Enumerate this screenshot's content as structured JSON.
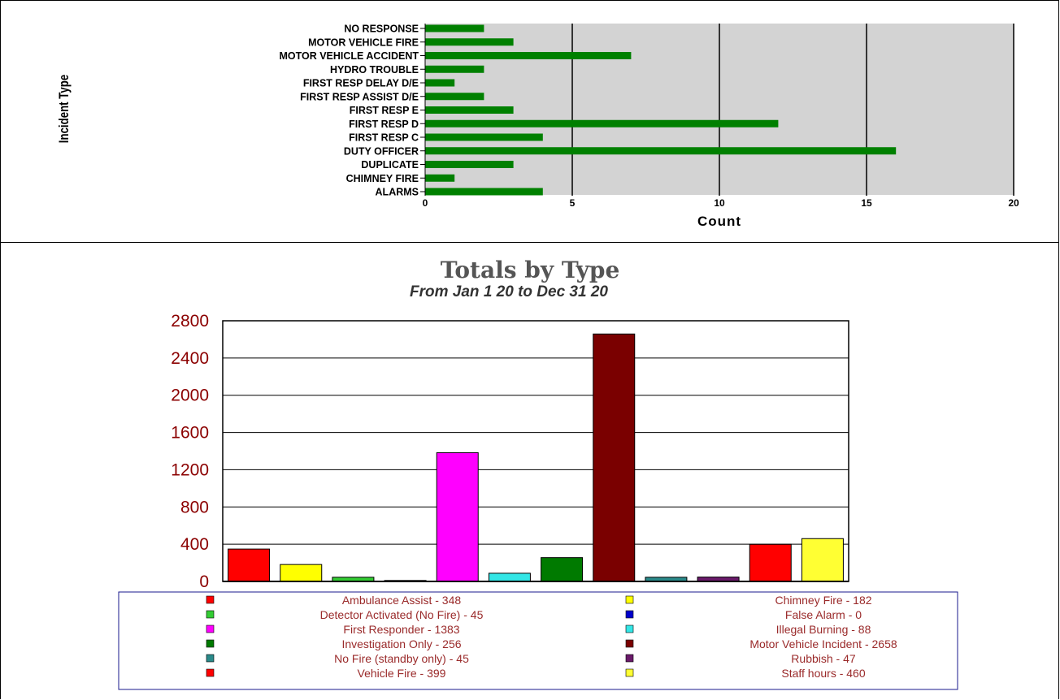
{
  "chart_data": [
    {
      "type": "bar",
      "orientation": "horizontal",
      "ylabel": "Incident Type",
      "xlabel": "Count",
      "xlim": [
        0,
        20
      ],
      "xticks": [
        "0",
        "5",
        "10",
        "15",
        "20"
      ],
      "grid": true,
      "background": "#d3d3d3",
      "bar_color": "#008000",
      "categories": [
        "NO RESPONSE",
        "MOTOR VEHICLE FIRE",
        "MOTOR VEHICLE ACCIDENT",
        "HYDRO TROUBLE",
        "FIRST RESP DELAY D/E",
        "FIRST RESP ASSIST D/E",
        "FIRST RESP  E",
        "FIRST RESP  D",
        "FIRST RESP  C",
        "DUTY OFFICER",
        "DUPLICATE",
        "CHIMNEY FIRE",
        "ALARMS"
      ],
      "values": [
        2,
        3,
        7,
        2,
        1,
        2,
        3,
        12,
        4,
        16,
        3,
        1,
        4
      ]
    },
    {
      "type": "bar",
      "title": "Totals by Type",
      "subtitle": "From Jan 1 20 to Dec 31 20",
      "ylim": [
        0,
        2800
      ],
      "yticks": [
        "0",
        "400",
        "800",
        "1200",
        "1600",
        "2000",
        "2400",
        "2800"
      ],
      "grid": true,
      "legend_position": "bottom",
      "series": [
        {
          "name": "Ambulance Assist - 348",
          "value": 348,
          "color": "#ff0000"
        },
        {
          "name": "Chimney Fire - 182",
          "value": 182,
          "color": "#ffff00"
        },
        {
          "name": "Detector Activated (No Fire) - 45",
          "value": 45,
          "color": "#33cc33"
        },
        {
          "name": "False Alarm - 0",
          "value": 0,
          "color": "#0000cc"
        },
        {
          "name": "First Responder - 1383",
          "value": 1383,
          "color": "#ff00ff"
        },
        {
          "name": "Illegal Burning - 88",
          "value": 88,
          "color": "#33e6e6"
        },
        {
          "name": "Investigation Only - 256",
          "value": 256,
          "color": "#007a00"
        },
        {
          "name": "Motor Vehicle Incident - 2658",
          "value": 2658,
          "color": "#7a0000"
        },
        {
          "name": "No Fire (standby only) - 45",
          "value": 45,
          "color": "#2a8a8a"
        },
        {
          "name": "Rubbish - 47",
          "value": 47,
          "color": "#6a1a6a"
        },
        {
          "name": "Vehicle Fire - 399",
          "value": 399,
          "color": "#ff0000"
        },
        {
          "name": "Staff hours - 460",
          "value": 460,
          "color": "#ffff33"
        }
      ]
    }
  ]
}
